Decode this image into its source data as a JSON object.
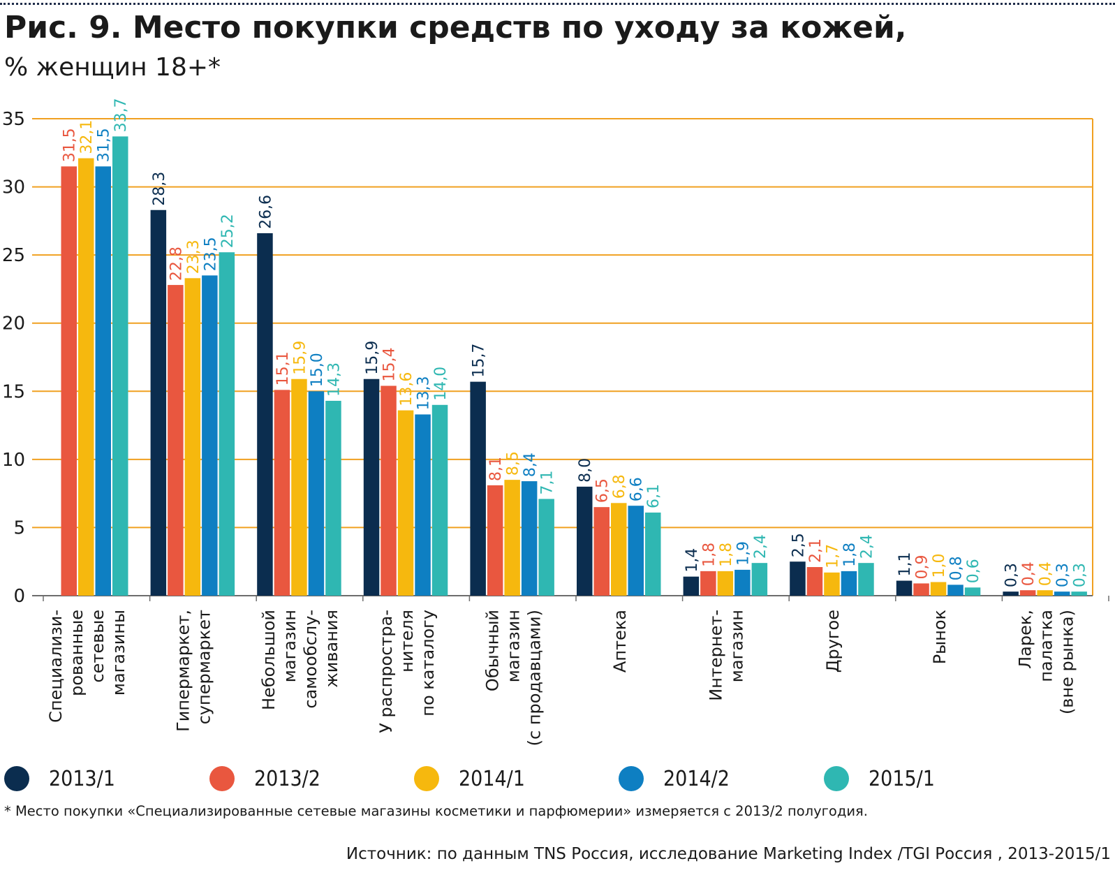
{
  "title": "Рис. 9. Место покупки средств по уходу за кожей,",
  "subtitle": "% женщин 18+*",
  "footnote": "* Место покупки «Специализированные сетевые магазины косметики и парфюмерии» измеряется с 2013/2 полугодия.",
  "source": "Источник: по данным TNS Россия, исследование Marketing Index /TGI Россия , 2013-2015/1",
  "chart_data": {
    "type": "bar",
    "title": "Рис. 9. Место покупки средств по уходу за кожей,",
    "subtitle": "% женщин 18+*",
    "ylim": [
      0,
      35
    ],
    "yticks": [
      "0",
      "5",
      "10",
      "15",
      "20",
      "25",
      "30",
      "35"
    ],
    "grid": true,
    "legend_position": "bottom",
    "colors": {
      "2013/1": "#0b2d4f",
      "2013/2": "#e9573f",
      "2014/1": "#f6b80e",
      "2014/2": "#0e7fc2",
      "2015/1": "#2fb7b2",
      "grid": "#f0a020"
    },
    "categories": [
      [
        "Специализи-",
        "рованные",
        "сетевые",
        "магазины"
      ],
      [
        "Гипермаркет,",
        "супермаркет"
      ],
      [
        "Небольшой",
        "магазин",
        "самообслу-",
        "живания"
      ],
      [
        "У распростра-",
        "нителя",
        "по каталогу"
      ],
      [
        "Обычный",
        "магазин",
        "(с продавцами)"
      ],
      [
        "Аптека"
      ],
      [
        "Интернет-",
        "магазин"
      ],
      [
        "Другое"
      ],
      [
        "Рынок"
      ],
      [
        "Ларек,",
        "палатка",
        "(вне рынка)"
      ]
    ],
    "series": [
      {
        "name": "2013/1",
        "values": [
          null,
          28.3,
          26.6,
          15.9,
          15.7,
          8.0,
          1.4,
          2.5,
          1.1,
          0.3
        ],
        "labels": [
          "",
          "28,3",
          "26,6",
          "15,9",
          "15,7",
          "8,0",
          "1,4",
          "2,5",
          "1,1",
          "0,3"
        ]
      },
      {
        "name": "2013/2",
        "values": [
          31.5,
          22.8,
          15.1,
          15.4,
          8.1,
          6.5,
          1.8,
          2.1,
          0.9,
          0.4
        ],
        "labels": [
          "31,5",
          "22,8",
          "15,1",
          "15,4",
          "8,1",
          "6,5",
          "1,8",
          "2,1",
          "0,9",
          "0,4"
        ]
      },
      {
        "name": "2014/1",
        "values": [
          32.1,
          23.3,
          15.9,
          13.6,
          8.5,
          6.8,
          1.8,
          1.7,
          1.0,
          0.4
        ],
        "labels": [
          "32,1",
          "23,3",
          "15,9",
          "13,6",
          "8,5",
          "6,8",
          "1,8",
          "1,7",
          "1,0",
          "0,4"
        ]
      },
      {
        "name": "2014/2",
        "values": [
          31.5,
          23.5,
          15.0,
          13.3,
          8.4,
          6.6,
          1.9,
          1.8,
          0.8,
          0.3
        ],
        "labels": [
          "31,5",
          "23,5",
          "15,0",
          "13,3",
          "8,4",
          "6,6",
          "1,9",
          "1,8",
          "0,8",
          "0,3"
        ]
      },
      {
        "name": "2015/1",
        "values": [
          33.7,
          25.2,
          14.3,
          14.0,
          7.1,
          6.1,
          2.4,
          2.4,
          0.6,
          0.3
        ],
        "labels": [
          "33,7",
          "25,2",
          "14,3",
          "14,0",
          "7,1",
          "6,1",
          "2,4",
          "2,4",
          "0,6",
          "0,3"
        ]
      }
    ]
  }
}
